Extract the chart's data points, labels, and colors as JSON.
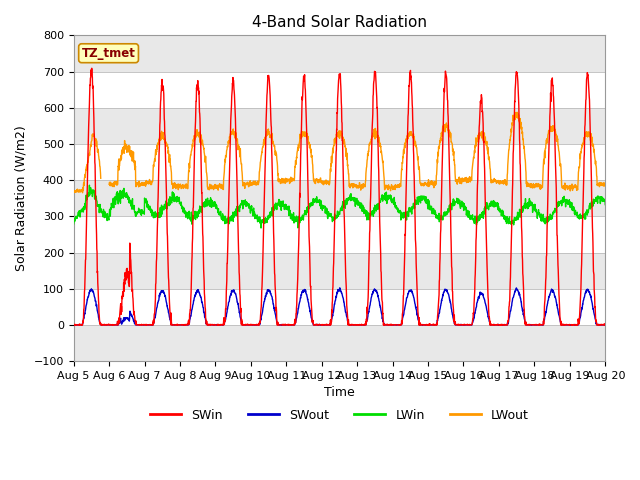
{
  "title": "4-Band Solar Radiation",
  "xlabel": "Time",
  "ylabel": "Solar Radiation (W/m2)",
  "ylim": [
    -100,
    800
  ],
  "n_days": 15,
  "legend_labels": [
    "SWin",
    "SWout",
    "LWin",
    "LWout"
  ],
  "legend_colors": [
    "#ff0000",
    "#0000bb",
    "#00dd00",
    "#ff9900"
  ],
  "tz_label": "TZ_tmet",
  "x_tick_labels": [
    "Aug 5",
    "Aug 6",
    "Aug 7",
    "Aug 8",
    "Aug 9",
    "Aug 10",
    "Aug 11",
    "Aug 12",
    "Aug 13",
    "Aug 14",
    "Aug 15",
    "Aug 16",
    "Aug 17",
    "Aug 18",
    "Aug 19",
    "Aug 20"
  ],
  "title_fontsize": 11,
  "axis_label_fontsize": 9,
  "tick_fontsize": 8,
  "stripe_colors": [
    "#ffffff",
    "#e8e8e8"
  ],
  "grid_line_color": "#cccccc",
  "plot_bg": "#f5f5f5"
}
